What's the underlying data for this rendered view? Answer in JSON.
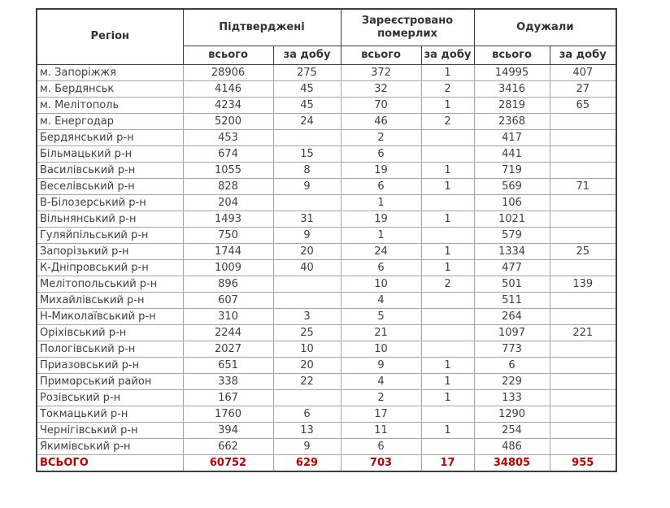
{
  "chart_data": {
    "type": "table",
    "header": {
      "region": "Регіон",
      "groups": [
        "Підтверджені",
        "Зареєстровано померлих",
        "Одужали"
      ],
      "subheaders": [
        "всього",
        "за добу",
        "всього",
        "за добу",
        "всього",
        "за добу"
      ]
    },
    "columns": [
      "Регіон",
      "Підтверджені всього",
      "Підтверджені за добу",
      "Зареєстровано померлих всього",
      "Зареєстровано померлих за добу",
      "Одужали всього",
      "Одужали за добу"
    ],
    "rows": [
      {
        "region": "м. Запоріжжя",
        "values": [
          "28906",
          "275",
          "372",
          "1",
          "14995",
          "407"
        ]
      },
      {
        "region": "м. Бердянськ",
        "values": [
          "4146",
          "45",
          "32",
          "2",
          "3416",
          "27"
        ]
      },
      {
        "region": "м. Мелітополь",
        "values": [
          "4234",
          "45",
          "70",
          "1",
          "2819",
          "65"
        ]
      },
      {
        "region": "м. Енергодар",
        "values": [
          "5200",
          "24",
          "46",
          "2",
          "2368",
          ""
        ]
      },
      {
        "region": "Бердянський р-н",
        "values": [
          "453",
          "",
          "2",
          "",
          "417",
          ""
        ]
      },
      {
        "region": "Більмацький р-н",
        "values": [
          "674",
          "15",
          "6",
          "",
          "441",
          ""
        ]
      },
      {
        "region": "Василівський р-н",
        "values": [
          "1055",
          "8",
          "19",
          "1",
          "719",
          ""
        ]
      },
      {
        "region": "Веселівський р-н",
        "values": [
          "828",
          "9",
          "6",
          "1",
          "569",
          "71"
        ]
      },
      {
        "region": "В-Білозерський р-н",
        "values": [
          "204",
          "",
          "1",
          "",
          "106",
          ""
        ]
      },
      {
        "region": "Вільнянський р-н",
        "values": [
          "1493",
          "31",
          "19",
          "1",
          "1021",
          ""
        ]
      },
      {
        "region": "Гуляйпільський р-н",
        "values": [
          "750",
          "9",
          "1",
          "",
          "579",
          ""
        ]
      },
      {
        "region": "Запорізький р-н",
        "values": [
          "1744",
          "20",
          "24",
          "1",
          "1334",
          "25"
        ]
      },
      {
        "region": "К-Дніпровський р-н",
        "values": [
          "1009",
          "40",
          "6",
          "1",
          "477",
          ""
        ]
      },
      {
        "region": "Мелітопольський р-н",
        "values": [
          "896",
          "",
          "10",
          "2",
          "501",
          "139"
        ]
      },
      {
        "region": "Михайлівський р-н",
        "values": [
          "607",
          "",
          "4",
          "",
          "511",
          ""
        ]
      },
      {
        "region": "Н-Миколаївський  р-н",
        "values": [
          "310",
          "3",
          "5",
          "",
          "264",
          ""
        ]
      },
      {
        "region": "Оріхівський р-н",
        "values": [
          "2244",
          "25",
          "21",
          "",
          "1097",
          "221"
        ]
      },
      {
        "region": "Пологівський р-н",
        "values": [
          "2027",
          "10",
          "10",
          "",
          "773",
          ""
        ]
      },
      {
        "region": "Приазовський р-н",
        "values": [
          "651",
          "20",
          "9",
          "1",
          "6",
          ""
        ]
      },
      {
        "region": "Приморський район",
        "values": [
          "338",
          "22",
          "4",
          "1",
          "229",
          ""
        ]
      },
      {
        "region": "Розівський р-н",
        "values": [
          "167",
          "",
          "2",
          "1",
          "133",
          ""
        ]
      },
      {
        "region": "Токмацький р-н",
        "values": [
          "1760",
          "6",
          "17",
          "",
          "1290",
          ""
        ]
      },
      {
        "region": "Чернігівський р-н",
        "values": [
          "394",
          "13",
          "11",
          "1",
          "254",
          ""
        ]
      },
      {
        "region": "Якимівський р-н",
        "values": [
          "662",
          "9",
          "6",
          "",
          "486",
          ""
        ]
      }
    ],
    "total": {
      "label": "ВСЬОГО",
      "values": [
        "60752",
        "629",
        "703",
        "17",
        "34805",
        "955"
      ]
    },
    "layout": {
      "grid": true,
      "legend": "none"
    }
  },
  "colors": {
    "total_text": "#c00000",
    "data_text": "#404040",
    "header_text": "#333333",
    "outer_border": "#3f3f3f",
    "inner_border": "#a6a6a6",
    "background": "#ffffff"
  }
}
